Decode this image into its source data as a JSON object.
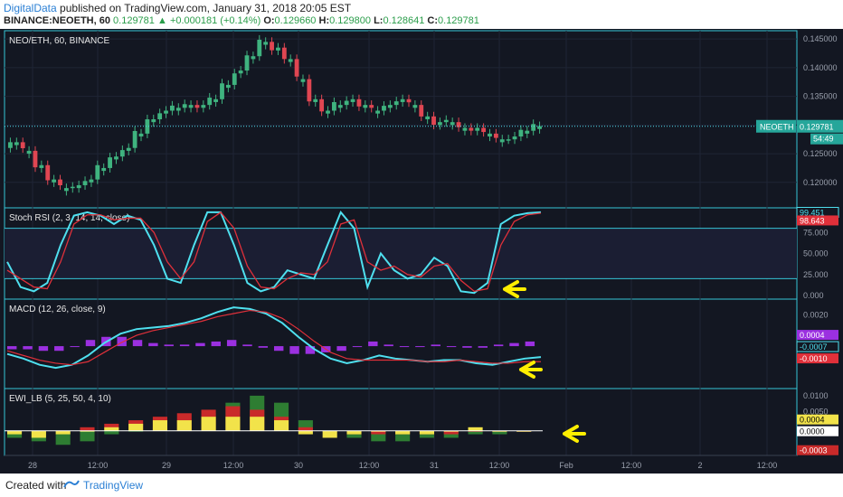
{
  "header": {
    "publisher": "DigitalData",
    "published_text": "published on TradingView.com, January 31, 2018 20:05 EST",
    "symbol": "BINANCE:NEOETH, 60",
    "last": "0.129781",
    "change_arrow": "▲",
    "change": "+0.000181 (+0.14%)",
    "o_label": "O:",
    "o": "0.129660",
    "h_label": "H:",
    "h": "0.129800",
    "l_label": "L:",
    "l": "0.128641",
    "c_label": "C:",
    "c": "0.129781"
  },
  "footer": {
    "created": "Created with",
    "brand": "TradingView"
  },
  "colors": {
    "background": "#131722",
    "border": "#36c5d6",
    "up": "#3fb37f",
    "down": "#e04652",
    "stoch_k": "#4fe0ef",
    "stoch_d": "#e0303a",
    "macd_hist": "#9b30e0",
    "ewi_yellow": "#f2e34a",
    "ewi_red": "#c92a2a",
    "ewi_green": "#2e7d32",
    "arrow": "#ffee00"
  },
  "chart_data": [
    {
      "type": "candlestick",
      "title": "NEO/ETH, 60, BINANCE",
      "ylim": [
        0.1165,
        0.1455
      ],
      "yticks": [
        "0.145000",
        "0.140000",
        "0.135000",
        "0.130000",
        "0.125000",
        "0.120000"
      ],
      "price_label": {
        "name": "NEOETH",
        "value": "0.129781",
        "countdown": "54:49"
      },
      "ohlc_close_path": [
        0.127,
        0.1255,
        0.123,
        0.1205,
        0.119,
        0.1195,
        0.1205,
        0.1225,
        0.1245,
        0.126,
        0.1285,
        0.131,
        0.1325,
        0.133,
        0.1335,
        0.1335,
        0.1345,
        0.137,
        0.1395,
        0.142,
        0.1445,
        0.1435,
        0.1415,
        0.138,
        0.1345,
        0.1325,
        0.1335,
        0.1345,
        0.1335,
        0.1325,
        0.1335,
        0.1345,
        0.1335,
        0.1315,
        0.1305,
        0.1305,
        0.1295,
        0.1295,
        0.1285,
        0.1275,
        0.128,
        0.129,
        0.1298
      ]
    },
    {
      "type": "line",
      "title": "Stoch RSI (2, 3, 14, 14, close)",
      "ylim": [
        0,
        100
      ],
      "yticks": [
        "75.000",
        "50.000",
        "25.000",
        "0.000"
      ],
      "levels": [
        80,
        20
      ],
      "series": [
        {
          "name": "K",
          "value_label": "99.451",
          "values": [
            40,
            10,
            5,
            15,
            60,
            95,
            99,
            95,
            85,
            95,
            90,
            60,
            20,
            15,
            60,
            99,
            99,
            60,
            15,
            5,
            10,
            30,
            25,
            20,
            60,
            99,
            80,
            10,
            50,
            30,
            20,
            25,
            45,
            35,
            5,
            3,
            15,
            85,
            95,
            98,
            99
          ]
        },
        {
          "name": "D",
          "value_label": "98.643",
          "values": [
            30,
            20,
            10,
            8,
            40,
            85,
            96,
            96,
            90,
            92,
            92,
            75,
            40,
            20,
            40,
            88,
            99,
            80,
            35,
            10,
            8,
            20,
            27,
            25,
            40,
            85,
            90,
            40,
            30,
            35,
            25,
            22,
            35,
            38,
            18,
            5,
            8,
            60,
            88,
            96,
            98
          ]
        }
      ]
    },
    {
      "type": "line",
      "title": "MACD (12, 26, close, 9)",
      "ylim": [
        -0.0025,
        0.0028
      ],
      "yticks": [
        "0.0020",
        "0.0000"
      ],
      "series": [
        {
          "name": "MACD",
          "value_label": "-0.0007",
          "values": [
            -0.0005,
            -0.0008,
            -0.0012,
            -0.0014,
            -0.0012,
            -0.0006,
            0.0002,
            0.0008,
            0.0011,
            0.0012,
            0.0013,
            0.0015,
            0.0018,
            0.0022,
            0.0025,
            0.0024,
            0.0021,
            0.0015,
            0.0006,
            -0.0002,
            -0.0008,
            -0.0011,
            -0.0009,
            -0.0006,
            -0.0008,
            -0.0009,
            -0.001,
            -0.0009,
            -0.0009,
            -0.0011,
            -0.0012,
            -0.001,
            -0.0008,
            -0.0007
          ]
        },
        {
          "name": "Signal",
          "value_label": "-0.0010",
          "values": [
            -0.0003,
            -0.0006,
            -0.0009,
            -0.0011,
            -0.0012,
            -0.001,
            -0.0004,
            0.0002,
            0.0007,
            0.001,
            0.0012,
            0.0014,
            0.0016,
            0.0019,
            0.0021,
            0.0023,
            0.0022,
            0.0018,
            0.0011,
            0.0003,
            -0.0004,
            -0.0008,
            -0.0009,
            -0.0009,
            -0.0009,
            -0.0009,
            -0.001,
            -0.001,
            -0.0009,
            -0.001,
            -0.0011,
            -0.0011,
            -0.001,
            -0.001
          ]
        },
        {
          "name": "Histogram",
          "value_label": "0.0004",
          "values": [
            -0.0002,
            -0.0002,
            -0.0003,
            -0.0003,
            0.0,
            0.0004,
            0.0006,
            0.0006,
            0.0004,
            0.0002,
            0.0001,
            0.0001,
            0.0002,
            0.0003,
            0.0004,
            0.0001,
            -0.0001,
            -0.0003,
            -0.0005,
            -0.0005,
            -0.0004,
            -0.0003,
            0.0,
            0.0003,
            0.0001,
            0.0,
            0.0,
            0.0001,
            0.0,
            -0.0001,
            -0.0001,
            0.0001,
            0.0002,
            0.0003
          ]
        }
      ]
    },
    {
      "type": "bar",
      "title": "EWI_LB (5, 25, 50, 4, 10)",
      "ylim": [
        -0.0006,
        0.0011
      ],
      "yticks": [
        "0.0100",
        "0.0050",
        "0.0000"
      ],
      "value_labels": [
        "0.0004",
        "0.0000",
        "-0.0003"
      ],
      "series": [
        {
          "name": "yellow",
          "values": [
            -0.0001,
            -0.0002,
            -0.0001,
            0.0,
            0.0001,
            0.0002,
            0.0003,
            0.0003,
            0.0004,
            0.0004,
            0.0004,
            0.0003,
            -0.0001,
            -0.0002,
            -0.0001,
            0.0,
            -0.0001,
            -0.0001,
            0.0,
            0.0001,
            0.0,
            0.0
          ]
        },
        {
          "name": "red",
          "values": [
            0.0,
            0.0,
            0.0,
            0.0001,
            0.0002,
            0.0003,
            0.0004,
            0.0005,
            0.0006,
            0.0007,
            0.0006,
            0.0004,
            0.0001,
            0.0,
            -0.0001,
            -0.0001,
            -0.0001,
            -0.0001,
            -0.0001,
            0.0,
            0.0,
            0.0
          ]
        },
        {
          "name": "green",
          "values": [
            -0.0002,
            -0.0003,
            -0.0004,
            -0.0003,
            -0.0001,
            0.0,
            0.0001,
            0.0003,
            0.0005,
            0.0008,
            0.001,
            0.0008,
            0.0003,
            0.0,
            -0.0002,
            -0.0003,
            -0.0003,
            -0.0002,
            -0.0002,
            -0.0001,
            -0.0001,
            0.0
          ]
        }
      ]
    }
  ],
  "x_axis": {
    "ticks": [
      "28",
      "12:00",
      "29",
      "12:00",
      "30",
      "12:00",
      "31",
      "12:00",
      "Feb",
      "12:00",
      "2",
      "12:00"
    ]
  }
}
